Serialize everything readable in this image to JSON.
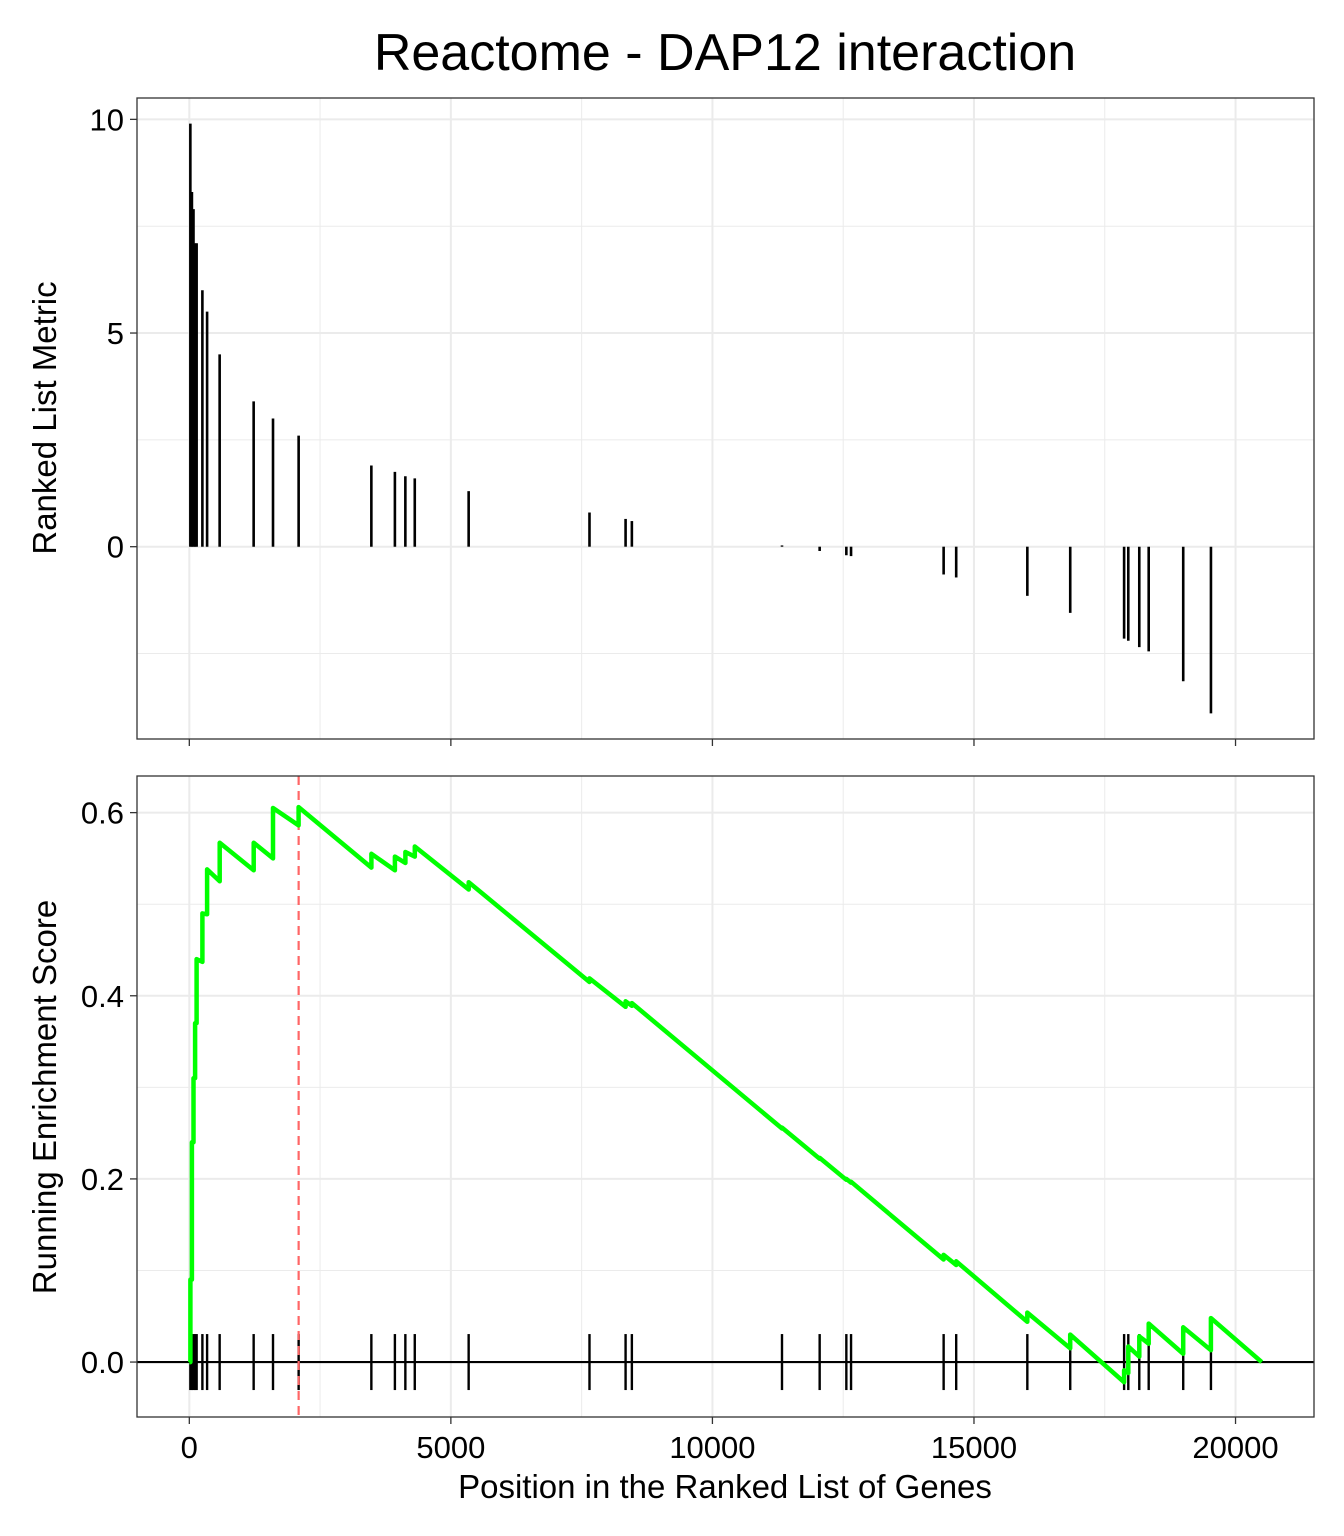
{
  "title": "Reactome - DAP12 interaction",
  "colors": {
    "background": "#ffffff",
    "grid": "#ebebeb",
    "panel_border": "#333333",
    "bars": "#000000",
    "running_es": "#00ff00",
    "peak_line": "#ff6666",
    "zero_line": "#000000"
  },
  "chart_data": [
    {
      "type": "bar",
      "panel": "ranked-list-metric",
      "xlabel": "",
      "ylabel": "Ranked List Metric",
      "xlim": [
        -1000,
        21500
      ],
      "ylim": [
        -4.5,
        10.5
      ],
      "x_ticks": [
        0,
        5000,
        10000,
        15000,
        20000
      ],
      "y_ticks": [
        0,
        5,
        10
      ],
      "y_tick_labels": [
        "0",
        "5",
        "10"
      ],
      "grid": true,
      "points": [
        {
          "x": 20,
          "y": 9.9
        },
        {
          "x": 50,
          "y": 8.3
        },
        {
          "x": 80,
          "y": 7.9
        },
        {
          "x": 110,
          "y": 7.1
        },
        {
          "x": 140,
          "y": 7.1
        },
        {
          "x": 250,
          "y": 6.0
        },
        {
          "x": 340,
          "y": 5.5
        },
        {
          "x": 580,
          "y": 4.5
        },
        {
          "x": 1230,
          "y": 3.4
        },
        {
          "x": 1600,
          "y": 3.0
        },
        {
          "x": 2090,
          "y": 2.6
        },
        {
          "x": 3480,
          "y": 1.9
        },
        {
          "x": 3930,
          "y": 1.75
        },
        {
          "x": 4130,
          "y": 1.65
        },
        {
          "x": 4310,
          "y": 1.6
        },
        {
          "x": 5340,
          "y": 1.3
        },
        {
          "x": 7650,
          "y": 0.8
        },
        {
          "x": 8340,
          "y": 0.65
        },
        {
          "x": 8460,
          "y": 0.6
        },
        {
          "x": 11330,
          "y": 0.03
        },
        {
          "x": 12050,
          "y": -0.1
        },
        {
          "x": 12560,
          "y": -0.2
        },
        {
          "x": 12650,
          "y": -0.22
        },
        {
          "x": 14420,
          "y": -0.65
        },
        {
          "x": 14660,
          "y": -0.72
        },
        {
          "x": 16020,
          "y": -1.15
        },
        {
          "x": 16840,
          "y": -1.55
        },
        {
          "x": 17870,
          "y": -2.15
        },
        {
          "x": 17950,
          "y": -2.2
        },
        {
          "x": 18160,
          "y": -2.35
        },
        {
          "x": 18340,
          "y": -2.45
        },
        {
          "x": 19000,
          "y": -3.15
        },
        {
          "x": 19530,
          "y": -3.9
        }
      ]
    },
    {
      "type": "line",
      "panel": "running-enrichment-score",
      "xlabel": "Position in the Ranked List of Genes",
      "ylabel": "Running Enrichment Score",
      "xlim": [
        -1000,
        21500
      ],
      "ylim": [
        -0.06,
        0.64
      ],
      "x_ticks": [
        0,
        5000,
        10000,
        15000,
        20000
      ],
      "x_tick_labels": [
        "0",
        "5000",
        "10000",
        "15000",
        "20000"
      ],
      "y_ticks": [
        0.0,
        0.2,
        0.4,
        0.6
      ],
      "y_tick_labels": [
        "0.0",
        "0.2",
        "0.4",
        "0.6"
      ],
      "grid": true,
      "peak_position": 2090,
      "hits": [
        20,
        50,
        80,
        110,
        140,
        250,
        340,
        580,
        1230,
        1600,
        2090,
        3480,
        3930,
        4130,
        4310,
        5340,
        7650,
        8340,
        8460,
        11330,
        12050,
        12560,
        12650,
        14420,
        14660,
        16020,
        16840,
        17870,
        17950,
        18160,
        18340,
        19000,
        19530
      ],
      "series": [
        {
          "x": [
            0,
            20,
            20,
            50,
            50,
            80,
            80,
            110,
            110,
            140,
            140,
            250,
            250,
            340,
            340,
            580,
            580,
            1230,
            1230,
            1600,
            1600,
            2090,
            2090,
            3480,
            3480,
            3930,
            3930,
            4130,
            4130,
            4310,
            4310,
            5340,
            5340,
            7650,
            7650,
            8340,
            8340,
            8460,
            8460,
            11330,
            11330,
            12050,
            12050,
            12560,
            12560,
            12650,
            12650,
            14420,
            14420,
            14660,
            14660,
            16020,
            16020,
            16840,
            16840,
            17870,
            17870,
            17950,
            17950,
            18160,
            18160,
            18340,
            18340,
            19000,
            19000,
            19530,
            19530,
            20500
          ],
          "y": [
            0.0,
            0.0,
            0.09,
            0.09,
            0.24,
            0.24,
            0.31,
            0.31,
            0.37,
            0.37,
            0.44,
            0.437,
            0.49,
            0.489,
            0.538,
            0.525,
            0.567,
            0.537,
            0.567,
            0.55,
            0.605,
            0.586,
            0.606,
            0.54,
            0.555,
            0.537,
            0.552,
            0.545,
            0.557,
            0.552,
            0.563,
            0.516,
            0.524,
            0.415,
            0.419,
            0.388,
            0.394,
            0.389,
            0.392,
            0.255,
            0.256,
            0.222,
            0.223,
            0.199,
            0.2,
            0.196,
            0.197,
            0.112,
            0.117,
            0.106,
            0.11,
            0.044,
            0.054,
            0.015,
            0.03,
            -0.022,
            -0.009,
            -0.012,
            0.017,
            0.006,
            0.028,
            0.02,
            0.042,
            0.009,
            0.038,
            0.013,
            0.048,
            0.0
          ]
        }
      ]
    }
  ]
}
